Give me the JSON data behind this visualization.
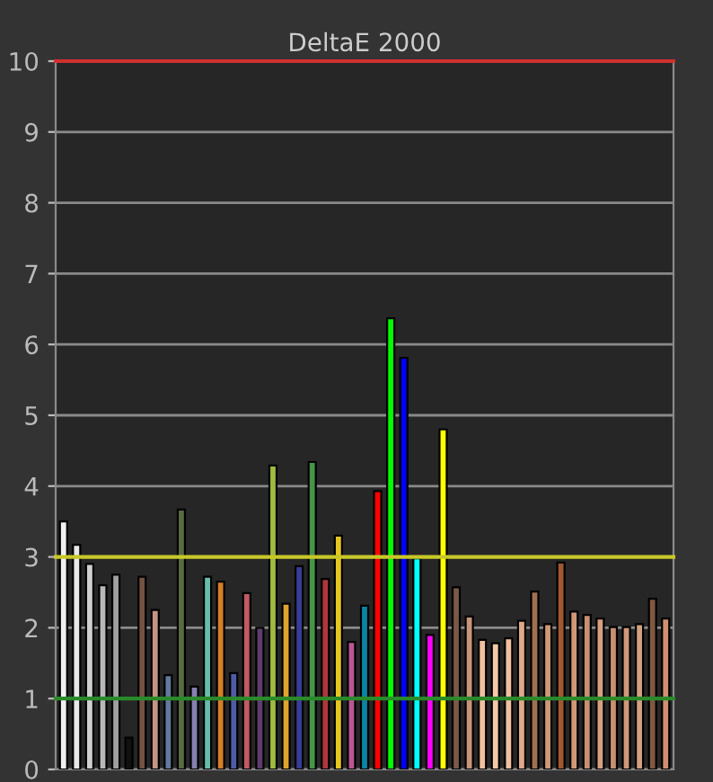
{
  "chart_data": {
    "type": "bar",
    "title": "DeltaE 2000",
    "categories": [
      null,
      null,
      null,
      null,
      null,
      null,
      null,
      null,
      null,
      null,
      null,
      null,
      null,
      null,
      null,
      null,
      null,
      null,
      null,
      null,
      null,
      null,
      null,
      null,
      null,
      null,
      null,
      null,
      null,
      null,
      null,
      null,
      null,
      null,
      null,
      null,
      null,
      null,
      null,
      null,
      null,
      null,
      null,
      null,
      null,
      null,
      null
    ],
    "values": [
      3.5,
      3.17,
      2.9,
      2.6,
      2.75,
      0.45,
      2.72,
      2.25,
      1.33,
      3.67,
      1.17,
      2.72,
      2.65,
      1.36,
      2.49,
      2.0,
      4.29,
      2.34,
      2.87,
      4.34,
      2.69,
      3.3,
      1.8,
      2.31,
      3.93,
      6.37,
      5.81,
      2.98,
      1.9,
      4.8,
      2.57,
      2.16,
      1.83,
      1.78,
      1.85,
      2.1,
      2.51,
      2.05,
      2.92,
      2.23,
      2.18,
      2.13,
      2.01,
      2.01,
      2.05,
      2.41,
      2.13
    ],
    "colors": [
      "#f0f0f0",
      "#e8e8e8",
      "#d0d0d0",
      "#b8b8b8",
      "#a0a0a0",
      "#101010",
      "#735244",
      "#c29682",
      "#627a9d",
      "#576c43",
      "#8580b1",
      "#67bdaa",
      "#d67e2c",
      "#505ba6",
      "#c15a63",
      "#5e3c6c",
      "#9dbc40",
      "#e0a32e",
      "#383d96",
      "#469449",
      "#af363c",
      "#e7c71f",
      "#bb5695",
      "#0885a1",
      "#ff0000",
      "#00ff00",
      "#0000ff",
      "#00ffff",
      "#ff00ff",
      "#ffff00",
      "#7a5a45",
      "#c9957a",
      "#f0c0a0",
      "#f5c8a8",
      "#f2c0a0",
      "#e0a888",
      "#a07050",
      "#d09878",
      "#a05830",
      "#d09878",
      "#c89070",
      "#d8a080",
      "#c89070",
      "#d09878",
      "#d0a080",
      "#805840",
      "#d09070"
    ],
    "ylim": [
      0,
      10
    ],
    "yticks": [
      0,
      1,
      2,
      3,
      4,
      5,
      6,
      7,
      8,
      9,
      10
    ],
    "grid": "y",
    "tick_labels": "y",
    "ref_lines": [
      {
        "axis": "y",
        "value": 3,
        "color": "#c8c828"
      },
      {
        "axis": "y",
        "value": 1,
        "color": "#2a8a2a"
      },
      {
        "axis": "y",
        "value": 10,
        "color": "#d03030"
      }
    ]
  }
}
